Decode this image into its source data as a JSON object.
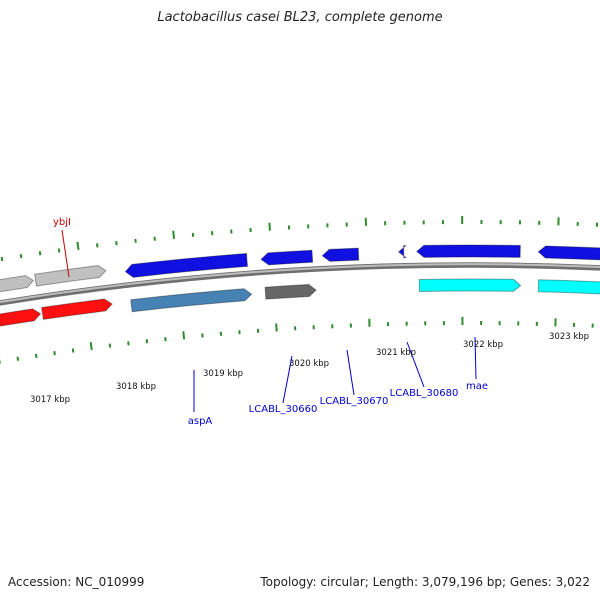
{
  "header": {
    "title": "Lactobacillus casei BL23, complete genome"
  },
  "footer": {
    "accession": "Accession: NC_010999",
    "summary": "Topology: circular; Length: 3,079,196 bp; Genes: 3,022"
  },
  "colors": {
    "backbone": "#8c8c8c",
    "tick": "#2e8b2e",
    "blue": "#1010e0",
    "steel": "#4682b4",
    "grey_dark": "#666666",
    "grey_light": "#c0c0c0",
    "red": "#ff1010",
    "cyan": "#00ffff",
    "label_blue": "#0000cc",
    "label_red": "#cc0000"
  },
  "scale_labels": [
    "3017 kbp",
    "3018 kbp",
    "3019 kbp",
    "3020 kbp",
    "3021 kbp",
    "3022 kbp",
    "3023 kbp"
  ],
  "genes": [
    {
      "name": "ybjI",
      "color": "red",
      "label_color": "label_red"
    },
    {
      "name": "aspA",
      "color": "steel",
      "label_color": "label_blue"
    },
    {
      "name": "LCABL_30660",
      "color": "grey_dark",
      "label_color": "label_blue"
    },
    {
      "name": "LCABL_30670",
      "color": "blue",
      "label_color": "label_blue"
    },
    {
      "name": "LCABL_30680",
      "color": "blue",
      "label_color": "label_blue"
    },
    {
      "name": "mae",
      "color": "cyan",
      "label_color": "label_blue"
    }
  ]
}
